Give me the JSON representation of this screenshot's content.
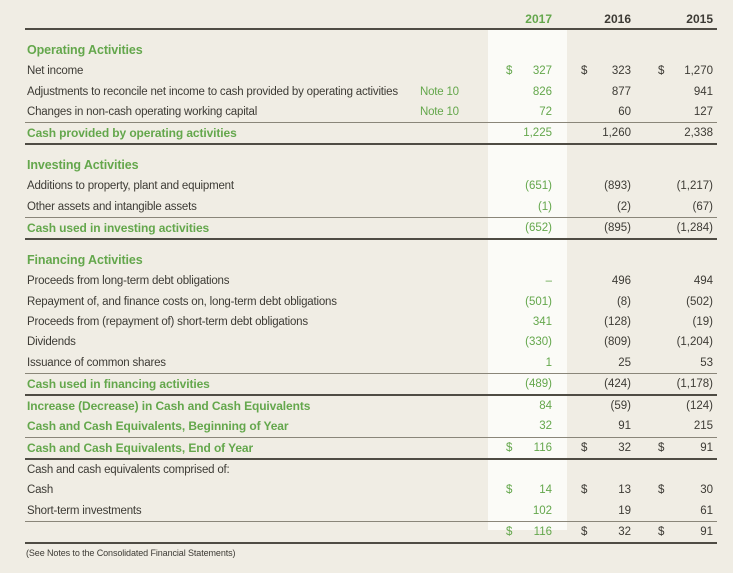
{
  "colors": {
    "background": "#f0ede4",
    "highlight_column": "#fbfbf7",
    "accent_green": "#64a74c",
    "text": "#3d3b35",
    "rule_dark": "#4f4c44",
    "rule_light": "#8a8679"
  },
  "footer": {
    "note": "(See Notes to the Consolidated Financial Statements)"
  },
  "table": {
    "currency_symbol": "$",
    "years": [
      "2017",
      "2016",
      "2015"
    ],
    "rows": [
      {
        "kind": "section",
        "label": "Operating Activities"
      },
      {
        "kind": "data",
        "label": "Net income",
        "dollar": true,
        "values": [
          "327",
          "323",
          "1,270"
        ]
      },
      {
        "kind": "data",
        "label": "Adjustments to reconcile net income to cash provided by operating activities",
        "note": "Note 10",
        "values": [
          "826",
          "877",
          "941"
        ]
      },
      {
        "kind": "data",
        "label": "Changes in non-cash operating working capital",
        "note": "Note 10",
        "values": [
          "72",
          "60",
          "127"
        ]
      },
      {
        "kind": "total",
        "label": "Cash provided by operating activities",
        "values": [
          "1,225",
          "1,260",
          "2,338"
        ]
      },
      {
        "kind": "section",
        "label": "Investing Activities"
      },
      {
        "kind": "data",
        "label": "Additions to property, plant and equipment",
        "values": [
          "(651)",
          "(893)",
          "(1,217)"
        ]
      },
      {
        "kind": "data",
        "label": "Other assets and intangible assets",
        "values": [
          "(1)",
          "(2)",
          "(67)"
        ]
      },
      {
        "kind": "total",
        "label": "Cash used in investing activities",
        "values": [
          "(652)",
          "(895)",
          "(1,284)"
        ]
      },
      {
        "kind": "section",
        "label": "Financing Activities"
      },
      {
        "kind": "data",
        "label": "Proceeds from long-term debt obligations",
        "values": [
          "–",
          "496",
          "494"
        ]
      },
      {
        "kind": "data",
        "label": "Repayment of, and finance costs on, long-term debt obligations",
        "values": [
          "(501)",
          "(8)",
          "(502)"
        ]
      },
      {
        "kind": "data",
        "label": "Proceeds from (repayment of) short-term debt obligations",
        "values": [
          "341",
          "(128)",
          "(19)"
        ]
      },
      {
        "kind": "data",
        "label": "Dividends",
        "values": [
          "(330)",
          "(809)",
          "(1,204)"
        ]
      },
      {
        "kind": "data",
        "label": "Issuance of common shares",
        "values": [
          "1",
          "25",
          "53"
        ]
      },
      {
        "kind": "total",
        "label": "Cash used in financing activities",
        "values": [
          "(489)",
          "(424)",
          "(1,178)"
        ]
      },
      {
        "kind": "green",
        "label": "Increase (Decrease) in Cash and Cash Equivalents",
        "values": [
          "84",
          "(59)",
          "(124)"
        ]
      },
      {
        "kind": "green",
        "label": "Cash and Cash Equivalents, Beginning of Year",
        "values": [
          "32",
          "91",
          "215"
        ]
      },
      {
        "kind": "total",
        "label": "Cash and Cash Equivalents, End of Year",
        "dollar": true,
        "values": [
          "116",
          "32",
          "91"
        ]
      },
      {
        "kind": "plain",
        "label": "Cash and cash equivalents comprised of:"
      },
      {
        "kind": "data",
        "label": "Cash",
        "dollar": true,
        "values": [
          "14",
          "13",
          "30"
        ]
      },
      {
        "kind": "data",
        "label": "Short-term investments",
        "values": [
          "102",
          "19",
          "61"
        ]
      },
      {
        "kind": "total",
        "label": "",
        "dollar": true,
        "values": [
          "116",
          "32",
          "91"
        ]
      }
    ]
  }
}
